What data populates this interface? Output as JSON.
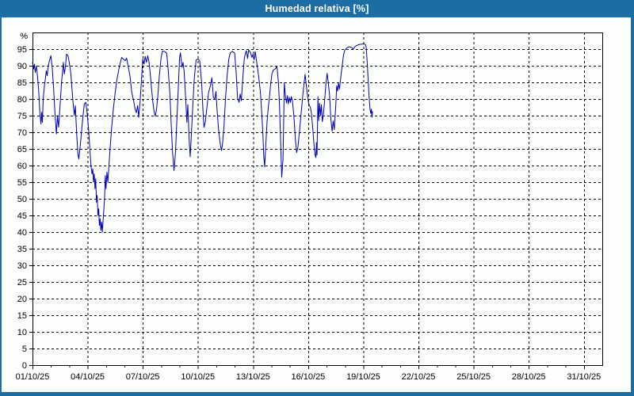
{
  "window": {
    "title": "Humedad relativa [%]"
  },
  "colors": {
    "titlebar_bg": "#1b6da3",
    "titlebar_text": "#ffffff",
    "content_bg": "#fcfefc",
    "frame": "#000000",
    "grid": "#000000",
    "tick_text": "#000000",
    "series_line": "#0000b2"
  },
  "chart_data": {
    "type": "line",
    "title": "Humedad relativa [%]",
    "y_unit_label": "%",
    "ylim": [
      0,
      100
    ],
    "y_tick_step": 5,
    "y_ticks": [
      0,
      5,
      10,
      15,
      20,
      25,
      30,
      35,
      40,
      45,
      50,
      55,
      60,
      65,
      70,
      75,
      80,
      85,
      90,
      95
    ],
    "grid": "dashed",
    "legend_position": "none",
    "x_axis": {
      "span_days": 31,
      "minor_tick_every_days": 1,
      "major_ticks": [
        {
          "day": 0,
          "label": "01/10/25"
        },
        {
          "day": 3,
          "label": "04/10/25"
        },
        {
          "day": 6,
          "label": "07/10/25"
        },
        {
          "day": 9,
          "label": "10/10/25"
        },
        {
          "day": 12,
          "label": "13/10/25"
        },
        {
          "day": 15,
          "label": "16/10/25"
        },
        {
          "day": 18,
          "label": "19/10/25"
        },
        {
          "day": 21,
          "label": "22/10/25"
        },
        {
          "day": 24,
          "label": "25/10/25"
        },
        {
          "day": 27,
          "label": "28/10/25"
        },
        {
          "day": 30,
          "label": "31/10/25"
        }
      ]
    },
    "series": [
      {
        "name": "Humedad relativa [%]",
        "x_days": [
          0,
          0.06,
          0.1,
          0.15,
          0.21,
          0.27,
          0.33,
          0.4,
          0.46,
          0.5,
          0.54,
          0.58,
          0.65,
          0.7,
          0.75,
          0.8,
          0.85,
          0.92,
          1,
          1.08,
          1.15,
          1.22,
          1.3,
          1.36,
          1.42,
          1.5,
          1.58,
          1.63,
          1.68,
          1.73,
          1.8,
          1.85,
          1.93,
          2,
          2.08,
          2.15,
          2.22,
          2.28,
          2.33,
          2.4,
          2.47,
          2.52,
          2.6,
          2.68,
          2.75,
          2.82,
          2.9,
          2.97,
          3.05,
          3.12,
          3.18,
          3.24,
          3.28,
          3.32,
          3.36,
          3.4,
          3.44,
          3.48,
          3.52,
          3.56,
          3.6,
          3.64,
          3.68,
          3.72,
          3.76,
          3.8,
          3.86,
          3.92,
          3.96,
          4,
          4.05,
          4.1,
          4.16,
          4.22,
          4.3,
          4.4,
          4.5,
          4.6,
          4.72,
          4.85,
          4.95,
          5.05,
          5.12,
          5.2,
          5.3,
          5.4,
          5.5,
          5.58,
          5.65,
          5.72,
          5.78,
          5.85,
          5.92,
          6,
          6.07,
          6.13,
          6.2,
          6.27,
          6.33,
          6.4,
          6.48,
          6.55,
          6.62,
          6.68,
          6.75,
          6.82,
          6.9,
          7,
          7.07,
          7.18,
          7.3,
          7.38,
          7.47,
          7.55,
          7.62,
          7.7,
          7.78,
          7.85,
          7.93,
          8,
          8.05,
          8.1,
          8.14,
          8.19,
          8.25,
          8.33,
          8.4,
          8.45,
          8.52,
          8.58,
          8.65,
          8.72,
          8.8,
          8.9,
          9,
          9.1,
          9.2,
          9.28,
          9.33,
          9.4,
          9.5,
          9.58,
          9.68,
          9.76,
          9.84,
          9.92,
          9.98,
          10.04,
          10.12,
          10.2,
          10.28,
          10.34,
          10.42,
          10.5,
          10.58,
          10.68,
          10.76,
          10.88,
          11,
          11.08,
          11.16,
          11.24,
          11.3,
          11.36,
          11.44,
          11.52,
          11.58,
          11.64,
          11.7,
          11.76,
          11.86,
          11.94,
          12,
          12.06,
          12.12,
          12.2,
          12.3,
          12.4,
          12.48,
          12.53,
          12.58,
          12.63,
          12.7,
          12.76,
          12.82,
          12.88,
          12.95,
          13.02,
          13.1,
          13.2,
          13.3,
          13.38,
          13.44,
          13.5,
          13.56,
          13.63,
          13.7,
          13.76,
          13.82,
          13.87,
          13.92,
          13.97,
          14.03,
          14.08,
          14.14,
          14.22,
          14.3,
          14.37,
          14.44,
          14.52,
          14.62,
          14.72,
          14.83,
          14.92,
          15,
          15.06,
          15.12,
          15.18,
          15.25,
          15.32,
          15.38,
          15.42,
          15.45,
          15.48,
          15.53,
          15.57,
          15.62,
          15.67,
          15.72,
          15.77,
          15.83,
          15.9,
          15.97,
          16.03,
          16.1,
          16.16,
          16.23,
          16.3,
          16.36,
          16.42,
          16.5,
          16.55,
          16.6,
          16.65,
          16.7,
          16.78,
          16.85,
          16.92,
          17,
          17.1,
          17.22,
          17.35,
          17.45,
          17.55,
          17.68,
          17.8,
          17.92,
          18.02,
          18.1,
          18.15,
          18.2,
          18.26,
          18.31,
          18.36,
          18.4,
          18.44,
          18.47,
          18.5
        ],
        "values": [
          91,
          89,
          90.5,
          88,
          90,
          87,
          83,
          76,
          72.5,
          76,
          73,
          80,
          84,
          86,
          88.5,
          87,
          89.5,
          91.5,
          93,
          89,
          83,
          76,
          69.5,
          75,
          71.5,
          78,
          85,
          88,
          91,
          87.5,
          90,
          93.5,
          93,
          91,
          88,
          83,
          78,
          75,
          78,
          70,
          63.5,
          62,
          66,
          71,
          75,
          78.5,
          79,
          76,
          71,
          65,
          60,
          57.5,
          59,
          55,
          57.5,
          53,
          56,
          49,
          51,
          45,
          47,
          42,
          44,
          40.5,
          43,
          40,
          45,
          50,
          57,
          53,
          58,
          55,
          60,
          65,
          71,
          77,
          82,
          86,
          89.5,
          92.5,
          92,
          91.5,
          92.3,
          90,
          87,
          82,
          79.5,
          77,
          75.9,
          78,
          74.5,
          79,
          85,
          92,
          90.5,
          92.8,
          91,
          93,
          91.5,
          88,
          83,
          79,
          76,
          74.8,
          77,
          81,
          87,
          92.5,
          94.4,
          94.3,
          93.8,
          89,
          82,
          72,
          64,
          58.5,
          64,
          73,
          83,
          92.3,
          93.9,
          91,
          89.5,
          91,
          88.3,
          80.5,
          73,
          78.3,
          68,
          62.6,
          70,
          78,
          86,
          91.7,
          92,
          91.4,
          85,
          76,
          71.5,
          73,
          78,
          82,
          84,
          86.4,
          80.5,
          80,
          82.3,
          77,
          71,
          67,
          64.5,
          66.5,
          72,
          80,
          86.5,
          92,
          93.9,
          94.3,
          93.8,
          88,
          80,
          79,
          81.5,
          79.5,
          86,
          92,
          93.7,
          94.5,
          92.2,
          94.7,
          94,
          92.5,
          93.5,
          91.8,
          94.2,
          91,
          87,
          82,
          75,
          70,
          63,
          59.6,
          67,
          73,
          77,
          80,
          84,
          87.4,
          88.7,
          89,
          89.8,
          85,
          78,
          67,
          56.5,
          62,
          84.9,
          81,
          78.8,
          81,
          78.5,
          80.5,
          79,
          80.7,
          79.5,
          75,
          68,
          63.9,
          65.5,
          70,
          76,
          82,
          87.4,
          83,
          79.5,
          78,
          77.5,
          75.5,
          71,
          66,
          63,
          62.4,
          66.9,
          63.2,
          80.7,
          73.5,
          78.7,
          75,
          78.3,
          73.2,
          75.5,
          80,
          85,
          87.7,
          84.5,
          81.3,
          74.2,
          70.3,
          73.4,
          70.8,
          78,
          84,
          82.4,
          84.8,
          83,
          86.9,
          90,
          93.2,
          94.8,
          95.3,
          95.7,
          95.5,
          95,
          95.8,
          96.2,
          96.4,
          96.5,
          96.6,
          96.4,
          95.8,
          92,
          86,
          81,
          77,
          75.7,
          77,
          74.5,
          76.2
        ]
      }
    ]
  }
}
